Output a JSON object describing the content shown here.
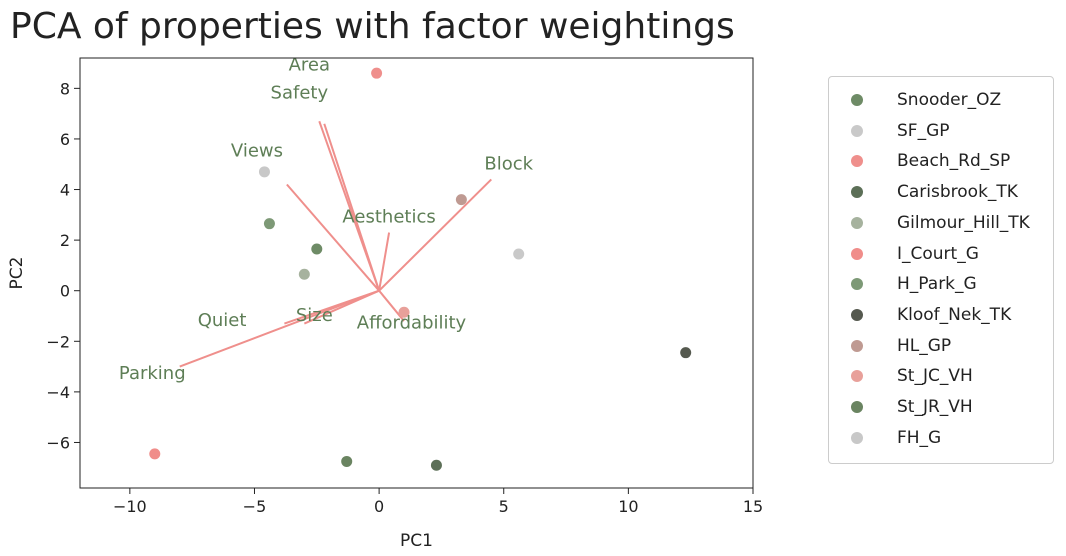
{
  "chart_data": {
    "type": "scatter",
    "title": "PCA of properties with factor weightings",
    "xlabel": "PC1",
    "ylabel": "PC2",
    "xlim": [
      -12,
      15
    ],
    "ylim": [
      -7.8,
      9.2
    ],
    "xticks": [
      -10,
      -5,
      0,
      5,
      10,
      15
    ],
    "xtick_labels": [
      "−10",
      "−5",
      "0",
      "5",
      "10",
      "15"
    ],
    "yticks": [
      -6,
      -4,
      -2,
      0,
      2,
      4,
      6,
      8
    ],
    "ytick_labels": [
      "−6",
      "−4",
      "−2",
      "0",
      "2",
      "4",
      "6",
      "8"
    ],
    "grid": false,
    "legend_position": "outside-right",
    "series": [
      {
        "name": "Snooder_OZ",
        "color": "#6e8b66",
        "x": -2.5,
        "y": 1.65
      },
      {
        "name": "SF_GP",
        "color": "#c9c9c9",
        "x": 5.6,
        "y": 1.45
      },
      {
        "name": "Beach_Rd_SP",
        "color": "#ef8f8c",
        "x": -0.1,
        "y": 8.6
      },
      {
        "name": "Carisbrook_TK",
        "color": "#5c6f57",
        "x": 2.3,
        "y": -6.9
      },
      {
        "name": "Gilmour_Hill_TK",
        "color": "#a6b29e",
        "x": -3.0,
        "y": 0.65
      },
      {
        "name": "I_Court_G",
        "color": "#f08d8a",
        "x": -9.0,
        "y": -6.45
      },
      {
        "name": "H_Park_G",
        "color": "#7d9976",
        "x": -4.4,
        "y": 2.65
      },
      {
        "name": "Kloof_Nek_TK",
        "color": "#55594f",
        "x": 12.3,
        "y": -2.45
      },
      {
        "name": "HL_GP",
        "color": "#bf9a92",
        "x": 3.3,
        "y": 3.6
      },
      {
        "name": "St_JC_VH",
        "color": "#e8a09a",
        "x": 1.0,
        "y": -0.85
      },
      {
        "name": "St_JR_VH",
        "color": "#6a8461",
        "x": -1.3,
        "y": -6.75
      },
      {
        "name": "FH_G",
        "color": "#c8c8c8",
        "x": -4.6,
        "y": 4.7
      }
    ],
    "loadings": [
      {
        "name": "Area",
        "x": -2.4,
        "y": 6.7,
        "label_x": -2.8,
        "label_y": 8.7
      },
      {
        "name": "Safety",
        "x": -2.2,
        "y": 6.6,
        "label_x": -3.2,
        "label_y": 7.6
      },
      {
        "name": "Views",
        "x": -3.7,
        "y": 4.2,
        "label_x": -4.9,
        "label_y": 5.3
      },
      {
        "name": "Block",
        "x": 4.5,
        "y": 4.4,
        "label_x": 5.2,
        "label_y": 4.8
      },
      {
        "name": "Aesthetics",
        "x": 0.4,
        "y": 2.3,
        "label_x": 0.4,
        "label_y": 2.7
      },
      {
        "name": "Quiet",
        "x": -3.8,
        "y": -1.3,
        "label_x": -6.3,
        "label_y": -1.4
      },
      {
        "name": "Size",
        "x": -3.0,
        "y": -1.3,
        "label_x": -2.6,
        "label_y": -1.2
      },
      {
        "name": "Affordability",
        "x": 1.0,
        "y": -1.2,
        "label_x": 1.3,
        "label_y": -1.5
      },
      {
        "name": "Parking",
        "x": -8.0,
        "y": -3.0,
        "label_x": -9.1,
        "label_y": -3.5
      }
    ],
    "loading_arrow_color": "#ef8f8c",
    "loading_label_color": "#5e7e56"
  }
}
